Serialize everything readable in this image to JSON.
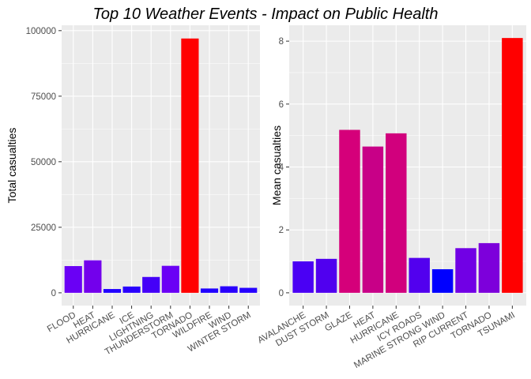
{
  "title": "Top 10 Weather Events - Impact on Public Health",
  "chart_data": [
    {
      "type": "bar",
      "ylabel": "Total casualties",
      "xlabel": "",
      "categories": [
        "FLOOD",
        "HEAT",
        "HURRICANE",
        "ICE",
        "LIGHTNING",
        "THUNDERSTORM",
        "TORNADO",
        "WILDFIRE",
        "WIND",
        "WINTER STORM"
      ],
      "values": [
        10200,
        12400,
        1450,
        2400,
        6050,
        10300,
        97000,
        1650,
        2500,
        1900
      ],
      "colors": [
        "#6a00f5",
        "#7300ec",
        "#2000ff",
        "#2900fd",
        "#4400f8",
        "#6a00f5",
        "#ff0000",
        "#2000ff",
        "#2900fd",
        "#2500ff"
      ],
      "yticks": [
        0,
        25000,
        50000,
        75000,
        100000
      ],
      "yticklabels": [
        "0",
        "25000",
        "50000",
        "75000",
        "100000"
      ],
      "ylim": [
        -4860,
        102050
      ],
      "grid": true
    },
    {
      "type": "bar",
      "ylabel": "Mean casualties",
      "xlabel": "",
      "categories": [
        "AVALANCHE",
        "DUST STORM",
        "GLAZE",
        "HEAT",
        "HURRICANE",
        "ICY ROADS",
        "MARINE STRONG WIND",
        "RIP CURRENT",
        "TORNADO",
        "TSUNAMI"
      ],
      "values": [
        1.0,
        1.08,
        5.18,
        4.65,
        5.07,
        1.11,
        0.75,
        1.42,
        1.58,
        8.1
      ],
      "colors": [
        "#4a00f4",
        "#5000ef",
        "#d5007a",
        "#c80087",
        "#d1007d",
        "#5200ee",
        "#0000ff",
        "#7100e5",
        "#7d00db",
        "#ff0000"
      ],
      "yticks": [
        0,
        2,
        4,
        6,
        8
      ],
      "yticklabels": [
        "0",
        "2",
        "4",
        "6",
        "8"
      ],
      "ylim": [
        -0.405,
        8.505
      ],
      "grid": true
    }
  ]
}
